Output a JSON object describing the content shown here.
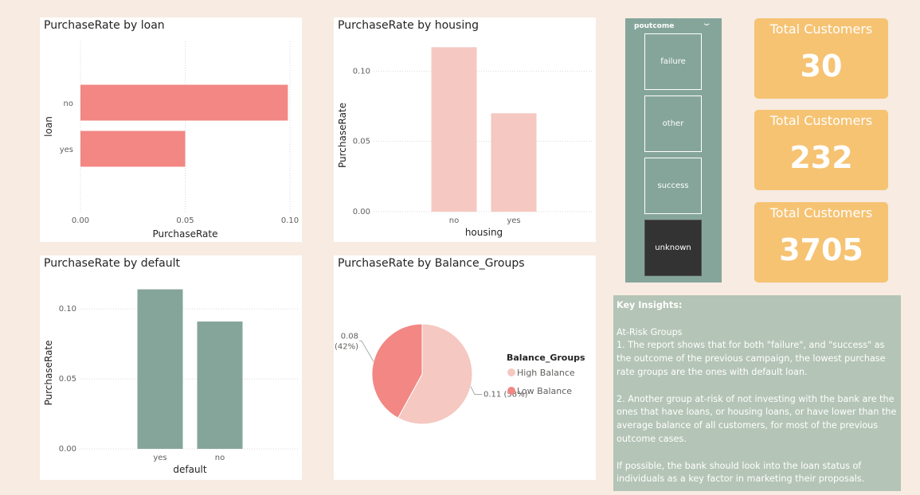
{
  "colors": {
    "loan_bar": "#f28783",
    "housing_bar": "#f5c8c1",
    "default_bar": "#85a59b",
    "pie_high": "#f5c8c1",
    "pie_low": "#f28783"
  },
  "chart_data": [
    {
      "id": "loan",
      "type": "bar",
      "orientation": "horizontal",
      "title": "PurchaseRate by loan",
      "xlabel": "PurchaseRate",
      "ylabel": "loan",
      "categories": [
        "no",
        "yes"
      ],
      "values": [
        0.099,
        0.05
      ],
      "xticks": [
        "0.00",
        "0.05",
        "0.10"
      ],
      "xlim": [
        0,
        0.1
      ],
      "grid": true
    },
    {
      "id": "housing",
      "type": "bar",
      "title": "PurchaseRate by housing",
      "xlabel": "housing",
      "ylabel": "PurchaseRate",
      "categories": [
        "no",
        "yes"
      ],
      "values": [
        0.117,
        0.07
      ],
      "yticks": [
        "0.00",
        "0.05",
        "0.10"
      ],
      "ylim": [
        0,
        0.12
      ],
      "grid": true
    },
    {
      "id": "default",
      "type": "bar",
      "title": "PurchaseRate by default",
      "xlabel": "default",
      "ylabel": "PurchaseRate",
      "categories": [
        "yes",
        "no"
      ],
      "values": [
        0.114,
        0.091
      ],
      "yticks": [
        "0.00",
        "0.05",
        "0.10"
      ],
      "ylim": [
        0,
        0.12
      ],
      "grid": true
    },
    {
      "id": "balance",
      "type": "pie",
      "title": "PurchaseRate by Balance_Groups",
      "legend_title": "Balance_Groups",
      "slices": [
        {
          "name": "High Balance",
          "value": 0.11,
          "percent": 58,
          "label": "0.11 (58%)"
        },
        {
          "name": "Low Balance",
          "value": 0.08,
          "percent": 42,
          "label_value": "0.08",
          "label_pct": "(42%)"
        }
      ],
      "legend_position": "right"
    }
  ],
  "slicer": {
    "title": "poutcome",
    "options": [
      "failure",
      "other",
      "success",
      "unknown"
    ],
    "selected": "unknown"
  },
  "kpis": [
    {
      "label": "Total Customers",
      "value": "30"
    },
    {
      "label": "Total Customers",
      "value": "232"
    },
    {
      "label": "Total Customers",
      "value": "3705"
    }
  ],
  "insights": {
    "heading": "Key Insights:",
    "subheading": "At-Risk Groups",
    "point1": "1. The report shows that for both \"failure\", and \"success\" as the outcome of the previous campaign, the lowest purchase rate groups are the ones with default loan.",
    "point2": "2. Another group at-risk of not investing with the bank are the ones that have loans, or housing loans, or have lower than the average balance of all customers, for most of the previous outcome cases.",
    "point3": "If possible, the bank should look into the loan status of individuals as a key factor in marketing their proposals."
  }
}
